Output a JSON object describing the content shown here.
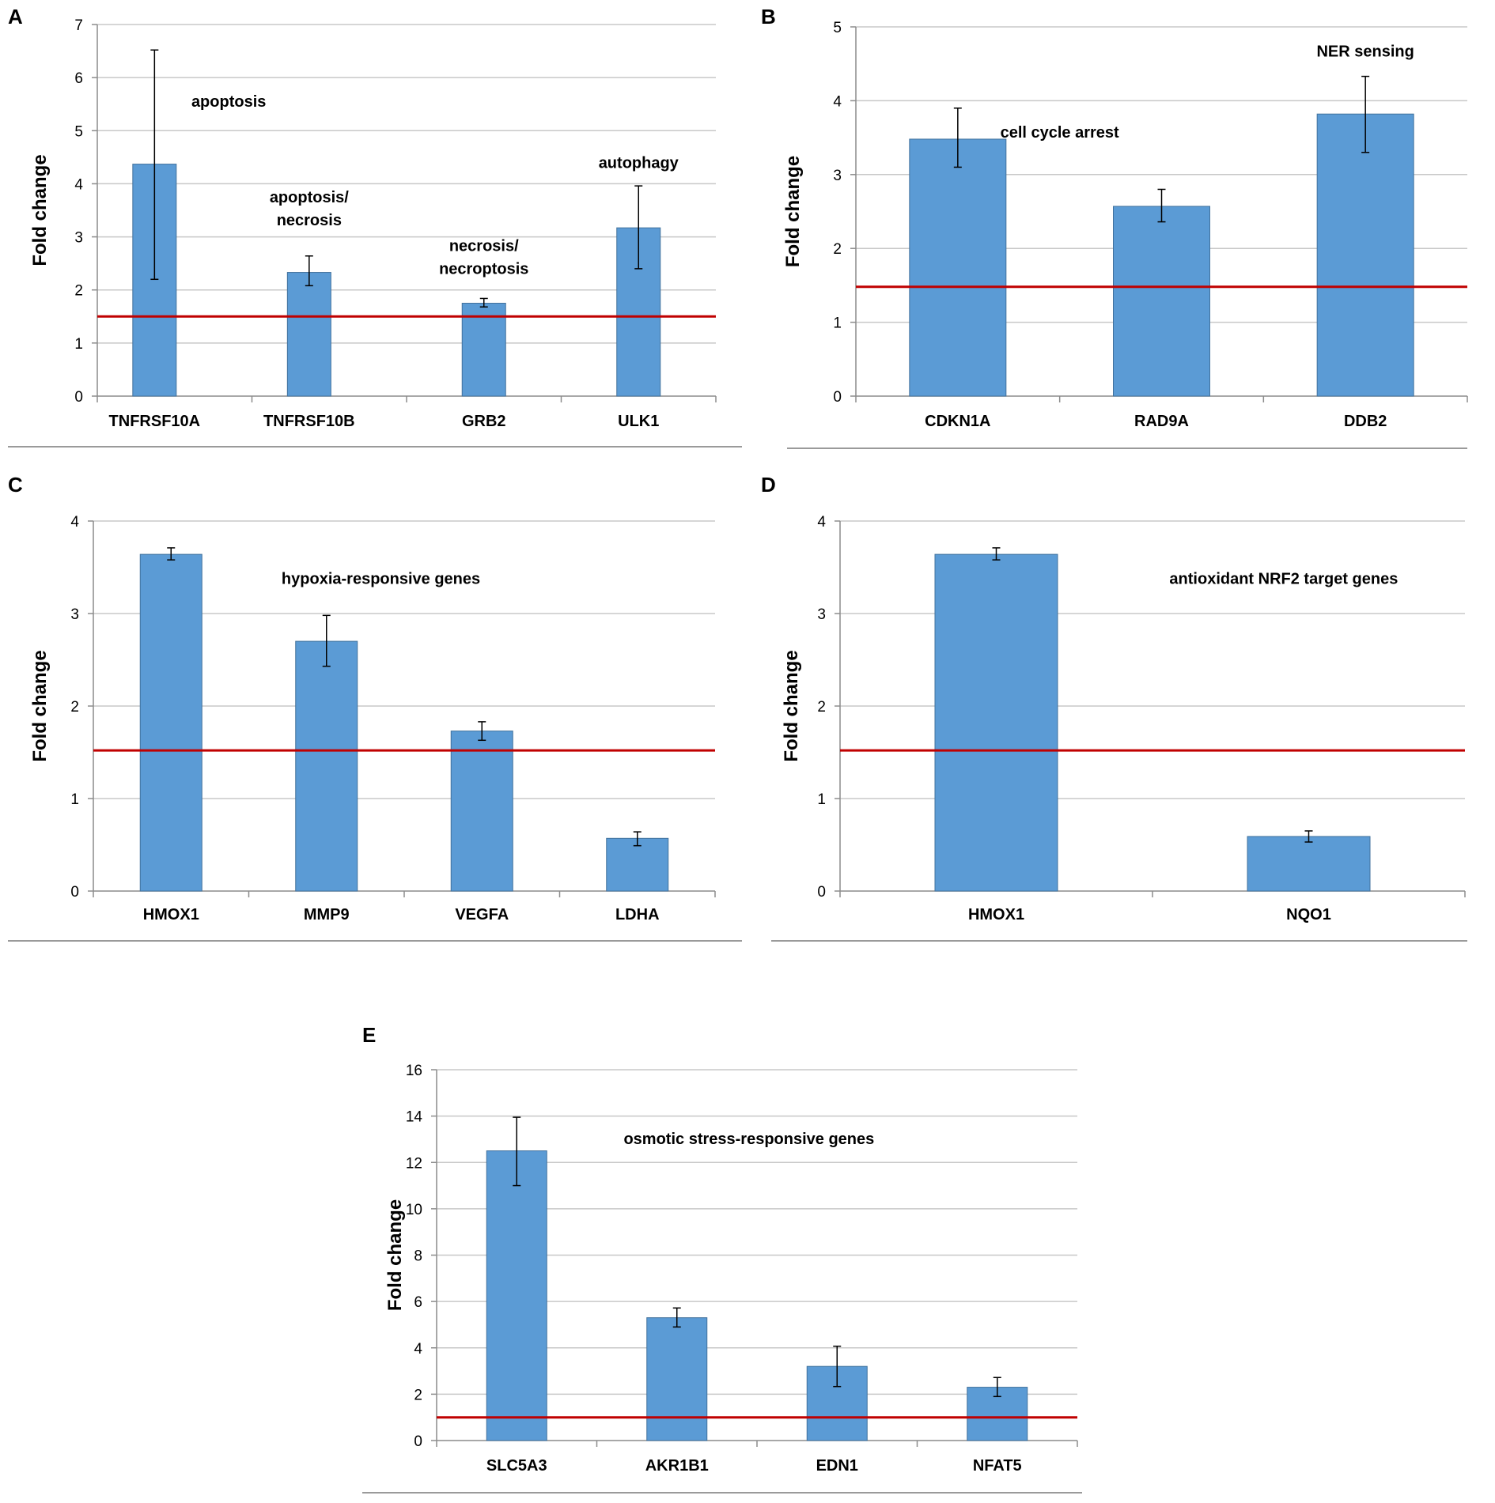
{
  "colors": {
    "bar": "#5b9bd5",
    "bar_edge": "#41719c",
    "threshold": "#c00000",
    "grid": "#c8c8c8",
    "axis": "#8c8c8c"
  },
  "chart_data": [
    {
      "panel": "A",
      "type": "bar",
      "ylabel": "Fold change",
      "ylim": [
        0,
        7
      ],
      "ticks": [
        0,
        1,
        2,
        3,
        4,
        5,
        6,
        7
      ],
      "threshold": 1.5,
      "slots": 4,
      "bars": [
        {
          "category": "TNFRSF10A",
          "value": 4.37,
          "err_low": 2.2,
          "err_high": 6.52,
          "slot": 0.37
        },
        {
          "category": "TNFRSF10B",
          "value": 2.33,
          "err_low": 2.08,
          "err_high": 2.64,
          "slot": 1.37
        },
        {
          "category": "GRB2",
          "value": 1.75,
          "err_low": 1.68,
          "err_high": 1.84,
          "slot": 2.5
        },
        {
          "category": "ULK1",
          "value": 3.17,
          "err_low": 2.4,
          "err_high": 3.96,
          "slot": 3.5
        }
      ],
      "annotations": [
        {
          "text": "apoptosis",
          "x": 0.85,
          "y": 5.45
        },
        {
          "text": "apoptosis/",
          "x": 1.37,
          "y": 3.65
        },
        {
          "text": "necrosis",
          "x": 1.37,
          "y": 3.22
        },
        {
          "text": "necrosis/",
          "x": 2.5,
          "y": 2.73
        },
        {
          "text": "necroptosis",
          "x": 2.5,
          "y": 2.3
        },
        {
          "text": "autophagy",
          "x": 3.5,
          "y": 4.3
        }
      ]
    },
    {
      "panel": "B",
      "type": "bar",
      "ylabel": "Fold change",
      "ylim": [
        0,
        5
      ],
      "ticks": [
        0,
        1,
        2,
        3,
        4,
        5
      ],
      "threshold": 1.48,
      "slots": 3,
      "bars": [
        {
          "category": "CDKN1A",
          "value": 3.48,
          "err_low": 3.1,
          "err_high": 3.9,
          "slot": 0.5
        },
        {
          "category": "RAD9A",
          "value": 2.57,
          "err_low": 2.36,
          "err_high": 2.8,
          "slot": 1.5
        },
        {
          "category": "DDB2",
          "value": 3.82,
          "err_low": 3.3,
          "err_high": 4.33,
          "slot": 2.5
        }
      ],
      "annotations": [
        {
          "text": "cell cycle arrest",
          "x": 1.0,
          "y": 3.5
        },
        {
          "text": "NER sensing",
          "x": 2.5,
          "y": 4.6
        }
      ]
    },
    {
      "panel": "C",
      "type": "bar",
      "ylabel": "Fold change",
      "ylim": [
        0,
        4
      ],
      "ticks": [
        0,
        1,
        2,
        3,
        4
      ],
      "threshold": 1.52,
      "slots": 4,
      "bars": [
        {
          "category": "HMOX1",
          "value": 3.64,
          "err_low": 3.58,
          "err_high": 3.71,
          "slot": 0.5
        },
        {
          "category": "MMP9",
          "value": 2.7,
          "err_low": 2.43,
          "err_high": 2.98,
          "slot": 1.5
        },
        {
          "category": "VEGFA",
          "value": 1.73,
          "err_low": 1.63,
          "err_high": 1.83,
          "slot": 2.5
        },
        {
          "category": "LDHA",
          "value": 0.57,
          "err_low": 0.49,
          "err_high": 0.64,
          "slot": 3.5
        }
      ],
      "annotations": [
        {
          "text": "hypoxia-responsive genes",
          "x": 1.85,
          "y": 3.32
        }
      ]
    },
    {
      "panel": "D",
      "type": "bar",
      "ylabel": "Fold change",
      "ylim": [
        0,
        4
      ],
      "ticks": [
        0,
        1,
        2,
        3,
        4
      ],
      "threshold": 1.52,
      "slots": 2,
      "bars": [
        {
          "category": "HMOX1",
          "value": 3.64,
          "err_low": 3.58,
          "err_high": 3.71,
          "slot": 0.5
        },
        {
          "category": "NQO1",
          "value": 0.59,
          "err_low": 0.53,
          "err_high": 0.65,
          "slot": 1.5
        }
      ],
      "annotations": [
        {
          "text": "antioxidant NRF2 target genes",
          "x": 1.42,
          "y": 3.32
        }
      ]
    },
    {
      "panel": "E",
      "type": "bar",
      "ylabel": "Fold change",
      "ylim": [
        0,
        16
      ],
      "ticks": [
        0,
        2,
        4,
        6,
        8,
        10,
        12,
        14,
        16
      ],
      "threshold": 1.0,
      "slots": 4,
      "bars": [
        {
          "category": "SLC5A3",
          "value": 12.5,
          "err_low": 11.0,
          "err_high": 13.95,
          "slot": 0.5
        },
        {
          "category": "AKR1B1",
          "value": 5.3,
          "err_low": 4.9,
          "err_high": 5.72,
          "slot": 1.5
        },
        {
          "category": "EDN1",
          "value": 3.2,
          "err_low": 2.33,
          "err_high": 4.07,
          "slot": 2.5
        },
        {
          "category": "NFAT5",
          "value": 2.3,
          "err_low": 1.9,
          "err_high": 2.72,
          "slot": 3.5
        }
      ],
      "annotations": [
        {
          "text": "osmotic stress-responsive genes",
          "x": 1.95,
          "y": 12.8
        }
      ]
    }
  ]
}
